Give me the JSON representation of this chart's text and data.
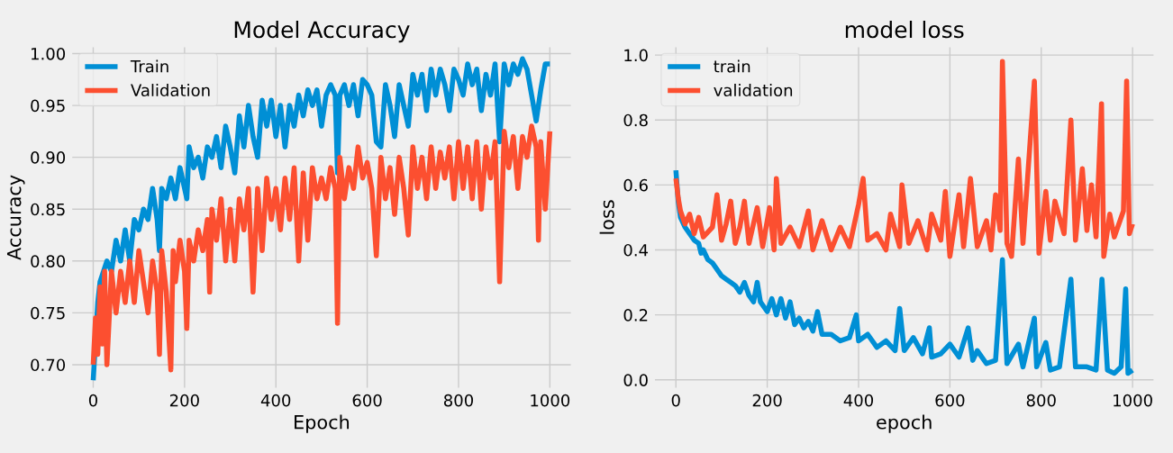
{
  "chart_data": [
    {
      "type": "line",
      "title": "Model Accuracy",
      "xlabel": "Epoch",
      "ylabel": "Accuracy",
      "grid": true,
      "legend": "top left",
      "xlim": [
        -50,
        1050
      ],
      "ylim": [
        0.676,
        1.008
      ],
      "xticks": [
        0,
        200,
        400,
        600,
        800,
        1000
      ],
      "yticks": [
        {
          "value": 0.7,
          "label": "0.70"
        },
        {
          "value": 0.75,
          "label": "0.75"
        },
        {
          "value": 0.8,
          "label": "0.80"
        },
        {
          "value": 0.85,
          "label": "0.85"
        },
        {
          "value": 0.9,
          "label": "0.90"
        },
        {
          "value": 0.95,
          "label": "0.95"
        },
        {
          "value": 1.0,
          "label": "1.00"
        }
      ],
      "series": [
        {
          "name": "Train",
          "color": "#008fd5",
          "x": [
            0,
            10,
            15,
            30,
            40,
            50,
            60,
            70,
            80,
            90,
            100,
            110,
            120,
            130,
            140,
            145,
            150,
            160,
            170,
            180,
            190,
            200,
            205,
            210,
            220,
            230,
            240,
            250,
            260,
            270,
            280,
            290,
            300,
            310,
            320,
            330,
            340,
            350,
            360,
            370,
            380,
            390,
            400,
            410,
            420,
            430,
            440,
            450,
            460,
            470,
            480,
            490,
            500,
            510,
            520,
            530,
            535,
            540,
            550,
            560,
            570,
            580,
            590,
            600,
            610,
            620,
            630,
            640,
            650,
            660,
            670,
            680,
            690,
            700,
            710,
            720,
            730,
            740,
            750,
            760,
            770,
            780,
            790,
            800,
            810,
            820,
            830,
            840,
            850,
            860,
            870,
            880,
            890,
            900,
            910,
            920,
            930,
            940,
            950,
            960,
            970,
            980,
            990,
            1000
          ],
          "values": [
            0.685,
            0.76,
            0.78,
            0.8,
            0.79,
            0.82,
            0.8,
            0.83,
            0.8,
            0.84,
            0.83,
            0.85,
            0.84,
            0.87,
            0.84,
            0.81,
            0.87,
            0.86,
            0.88,
            0.86,
            0.89,
            0.87,
            0.86,
            0.91,
            0.89,
            0.9,
            0.88,
            0.91,
            0.9,
            0.92,
            0.89,
            0.93,
            0.91,
            0.885,
            0.94,
            0.91,
            0.95,
            0.92,
            0.9,
            0.955,
            0.93,
            0.955,
            0.92,
            0.95,
            0.91,
            0.95,
            0.93,
            0.96,
            0.94,
            0.965,
            0.95,
            0.965,
            0.93,
            0.96,
            0.97,
            0.96,
            0.885,
            0.96,
            0.97,
            0.95,
            0.97,
            0.94,
            0.975,
            0.97,
            0.96,
            0.915,
            0.91,
            0.97,
            0.95,
            0.92,
            0.97,
            0.95,
            0.93,
            0.98,
            0.96,
            0.98,
            0.945,
            0.985,
            0.96,
            0.985,
            0.97,
            0.945,
            0.985,
            0.975,
            0.96,
            0.99,
            0.97,
            0.985,
            0.945,
            0.98,
            0.96,
            0.99,
            0.915,
            0.99,
            0.97,
            0.99,
            0.98,
            0.995,
            0.985,
            0.96,
            0.935,
            0.965,
            0.99,
            0.99
          ]
        },
        {
          "name": "Validation",
          "color": "#fc4f30",
          "x": [
            0,
            5,
            10,
            15,
            20,
            25,
            30,
            40,
            50,
            60,
            70,
            80,
            90,
            100,
            110,
            120,
            130,
            140,
            145,
            150,
            160,
            170,
            175,
            180,
            190,
            200,
            205,
            210,
            220,
            230,
            240,
            250,
            255,
            260,
            270,
            280,
            290,
            300,
            310,
            320,
            330,
            340,
            350,
            360,
            370,
            380,
            390,
            400,
            410,
            420,
            430,
            440,
            450,
            460,
            470,
            480,
            490,
            500,
            510,
            520,
            530,
            535,
            540,
            550,
            560,
            570,
            580,
            590,
            600,
            610,
            620,
            630,
            640,
            650,
            660,
            670,
            680,
            690,
            700,
            710,
            720,
            730,
            740,
            750,
            760,
            770,
            780,
            790,
            800,
            810,
            820,
            830,
            840,
            850,
            860,
            870,
            880,
            890,
            900,
            910,
            920,
            930,
            940,
            950,
            960,
            970,
            975,
            980,
            990,
            1000
          ],
          "values": [
            0.7,
            0.745,
            0.71,
            0.775,
            0.72,
            0.79,
            0.7,
            0.79,
            0.75,
            0.79,
            0.76,
            0.8,
            0.76,
            0.81,
            0.78,
            0.75,
            0.8,
            0.77,
            0.71,
            0.81,
            0.77,
            0.695,
            0.81,
            0.78,
            0.82,
            0.79,
            0.735,
            0.82,
            0.8,
            0.83,
            0.81,
            0.84,
            0.77,
            0.85,
            0.82,
            0.86,
            0.8,
            0.85,
            0.8,
            0.86,
            0.83,
            0.87,
            0.77,
            0.87,
            0.81,
            0.88,
            0.84,
            0.87,
            0.83,
            0.88,
            0.84,
            0.89,
            0.8,
            0.885,
            0.82,
            0.89,
            0.86,
            0.88,
            0.86,
            0.89,
            0.87,
            0.74,
            0.9,
            0.86,
            0.89,
            0.87,
            0.91,
            0.88,
            0.895,
            0.87,
            0.805,
            0.9,
            0.86,
            0.89,
            0.845,
            0.9,
            0.87,
            0.825,
            0.91,
            0.87,
            0.9,
            0.86,
            0.91,
            0.87,
            0.905,
            0.88,
            0.91,
            0.86,
            0.915,
            0.87,
            0.91,
            0.86,
            0.915,
            0.85,
            0.91,
            0.88,
            0.915,
            0.78,
            0.925,
            0.89,
            0.92,
            0.87,
            0.92,
            0.9,
            0.93,
            0.91,
            0.82,
            0.915,
            0.85,
            0.925
          ]
        }
      ]
    },
    {
      "type": "line",
      "title": "model loss",
      "xlabel": "epoch",
      "ylabel": "loss",
      "grid": true,
      "legend": "top left",
      "xlim": [
        -50,
        1050
      ],
      "ylim": [
        -0.03,
        1.03
      ],
      "xticks": [
        0,
        200,
        400,
        600,
        800,
        1000
      ],
      "yticks": [
        {
          "value": 0.0,
          "label": "0.0"
        },
        {
          "value": 0.2,
          "label": "0.2"
        },
        {
          "value": 0.4,
          "label": "0.4"
        },
        {
          "value": 0.6,
          "label": "0.6"
        },
        {
          "value": 0.8,
          "label": "0.8"
        },
        {
          "value": 1.0,
          "label": "1.0"
        }
      ],
      "series": [
        {
          "name": "train",
          "color": "#008fd5",
          "x": [
            0,
            5,
            10,
            20,
            30,
            40,
            50,
            55,
            60,
            70,
            80,
            90,
            100,
            110,
            120,
            130,
            140,
            150,
            160,
            170,
            178,
            185,
            200,
            210,
            220,
            230,
            240,
            250,
            260,
            270,
            280,
            290,
            300,
            310,
            320,
            340,
            360,
            380,
            395,
            400,
            420,
            440,
            460,
            480,
            490,
            500,
            520,
            540,
            555,
            560,
            580,
            600,
            620,
            640,
            650,
            660,
            680,
            700,
            715,
            725,
            750,
            760,
            785,
            790,
            810,
            820,
            840,
            865,
            875,
            900,
            920,
            933,
            945,
            960,
            975,
            985,
            990,
            1000
          ],
          "values": [
            0.645,
            0.55,
            0.5,
            0.47,
            0.45,
            0.43,
            0.42,
            0.39,
            0.4,
            0.37,
            0.36,
            0.34,
            0.32,
            0.31,
            0.3,
            0.29,
            0.27,
            0.3,
            0.26,
            0.24,
            0.3,
            0.24,
            0.21,
            0.25,
            0.2,
            0.25,
            0.19,
            0.24,
            0.17,
            0.19,
            0.16,
            0.18,
            0.15,
            0.21,
            0.14,
            0.14,
            0.12,
            0.13,
            0.2,
            0.12,
            0.14,
            0.1,
            0.12,
            0.09,
            0.22,
            0.09,
            0.13,
            0.08,
            0.16,
            0.07,
            0.08,
            0.11,
            0.07,
            0.16,
            0.06,
            0.09,
            0.05,
            0.06,
            0.37,
            0.05,
            0.11,
            0.04,
            0.19,
            0.04,
            0.115,
            0.03,
            0.04,
            0.31,
            0.04,
            0.04,
            0.03,
            0.31,
            0.03,
            0.02,
            0.04,
            0.28,
            0.02,
            0.03
          ]
        },
        {
          "name": "validation",
          "color": "#fc4f30",
          "x": [
            0,
            5,
            10,
            20,
            30,
            40,
            50,
            60,
            80,
            90,
            100,
            110,
            120,
            130,
            140,
            150,
            160,
            178,
            190,
            205,
            215,
            220,
            230,
            250,
            270,
            290,
            300,
            320,
            340,
            360,
            380,
            400,
            410,
            420,
            440,
            460,
            470,
            490,
            495,
            510,
            530,
            550,
            560,
            580,
            590,
            600,
            620,
            630,
            645,
            660,
            680,
            690,
            700,
            710,
            715,
            725,
            735,
            750,
            760,
            785,
            795,
            810,
            820,
            830,
            850,
            865,
            875,
            890,
            900,
            910,
            920,
            932,
            937,
            950,
            960,
            980,
            987,
            993,
            1000
          ],
          "values": [
            0.62,
            0.56,
            0.52,
            0.48,
            0.51,
            0.45,
            0.5,
            0.44,
            0.47,
            0.57,
            0.43,
            0.48,
            0.55,
            0.42,
            0.47,
            0.55,
            0.42,
            0.53,
            0.41,
            0.53,
            0.4,
            0.62,
            0.42,
            0.47,
            0.41,
            0.52,
            0.4,
            0.49,
            0.4,
            0.47,
            0.41,
            0.54,
            0.62,
            0.43,
            0.45,
            0.4,
            0.51,
            0.41,
            0.6,
            0.42,
            0.49,
            0.4,
            0.51,
            0.43,
            0.58,
            0.38,
            0.57,
            0.41,
            0.62,
            0.41,
            0.49,
            0.4,
            0.57,
            0.46,
            0.98,
            0.42,
            0.38,
            0.68,
            0.42,
            0.92,
            0.39,
            0.58,
            0.43,
            0.55,
            0.45,
            0.8,
            0.43,
            0.65,
            0.46,
            0.6,
            0.44,
            0.85,
            0.38,
            0.51,
            0.44,
            0.52,
            0.92,
            0.45,
            0.48
          ]
        }
      ]
    }
  ]
}
